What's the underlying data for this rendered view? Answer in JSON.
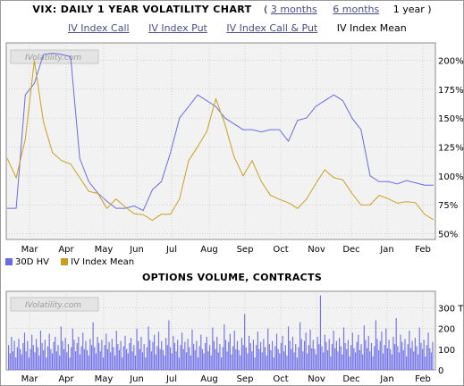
{
  "header": {
    "title": "VIX: DAILY 1 YEAR VOLATILITY CHART",
    "range_links": [
      "3 months",
      "6 months"
    ],
    "range_current": "1 year",
    "open_paren": "(",
    "close_paren": ")"
  },
  "chart_links": {
    "items": [
      "IV Index Call",
      "IV Index Put",
      "IV Index Call & Put"
    ],
    "current": "IV Index Mean"
  },
  "watermark": "IVolatility.com",
  "colors": {
    "hv": "#6b6be0",
    "iv": "#c8a020",
    "bars": "#7474ea",
    "grid": "#bdbdbd",
    "plot_bg": "#f2f2f2"
  },
  "chart_data": [
    {
      "type": "line",
      "x": [
        "Feb",
        "Feb",
        "Mar",
        "Mar",
        "Mar",
        "Mar",
        "Apr",
        "Apr",
        "Apr",
        "Apr",
        "May",
        "May",
        "May",
        "May",
        "Jun",
        "Jun",
        "Jun",
        "Jun",
        "Jul",
        "Jul",
        "Jul",
        "Jul",
        "Aug",
        "Aug",
        "Aug",
        "Aug",
        "Sep",
        "Sep",
        "Sep",
        "Sep",
        "Oct",
        "Oct",
        "Oct",
        "Oct",
        "Nov",
        "Nov",
        "Nov",
        "Nov",
        "Dec",
        "Dec",
        "Dec",
        "Dec",
        "Jan",
        "Jan",
        "Jan",
        "Jan",
        "Feb",
        "Feb"
      ],
      "x_ticks": [
        "Mar",
        "Apr",
        "May",
        "Jun",
        "Jul",
        "Aug",
        "Sep",
        "Oct",
        "Nov",
        "Dec",
        "Jan",
        "Feb"
      ],
      "y_ticks": [
        "50%",
        "75%",
        "100%",
        "125%",
        "150%",
        "175%",
        "200%"
      ],
      "ylim": [
        45,
        215
      ],
      "legend": [
        "30D HV",
        "IV Index Mean"
      ],
      "legend_position": "bottom-left",
      "grid": true,
      "series": [
        {
          "name": "30D HV",
          "values": [
            72,
            72,
            170,
            180,
            205,
            206,
            205,
            203,
            115,
            95,
            85,
            78,
            72,
            72,
            74,
            70,
            88,
            95,
            120,
            150,
            160,
            170,
            165,
            160,
            150,
            145,
            140,
            140,
            138,
            140,
            140,
            130,
            148,
            150,
            160,
            165,
            170,
            165,
            150,
            140,
            100,
            95,
            95,
            93,
            96,
            94,
            92,
            92
          ]
        },
        {
          "name": "IV Index Mean",
          "values": [
            120,
            100,
            130,
            195,
            150,
            120,
            110,
            115,
            100,
            85,
            80,
            75,
            80,
            70,
            72,
            68,
            60,
            62,
            70,
            80,
            110,
            130,
            140,
            165,
            140,
            120,
            100,
            110,
            100,
            85,
            78,
            72,
            75,
            80,
            90,
            110,
            100,
            95,
            80,
            78,
            75,
            80,
            85,
            78,
            76,
            72,
            70,
            62
          ]
        }
      ]
    },
    {
      "type": "bar",
      "title": "OPTIONS VOLUME, CONTRACTS",
      "y_ticks": [
        "0",
        "100",
        "200",
        "300 T"
      ],
      "ylim": [
        0,
        380
      ],
      "x_ticks": [
        "Mar",
        "Apr",
        "May",
        "Jun",
        "Jul",
        "Aug",
        "Sep",
        "Oct",
        "Nov",
        "Dec",
        "Jan",
        "Feb"
      ],
      "grid": true,
      "values": [
        120,
        80,
        160,
        90,
        140,
        60,
        110,
        150,
        100,
        75,
        130,
        180,
        90,
        140,
        60,
        100,
        170,
        120,
        85,
        150,
        110,
        70,
        190,
        130,
        95,
        145,
        60,
        115,
        175,
        100,
        80,
        135,
        160,
        90,
        120,
        70,
        210,
        140,
        100,
        155,
        85,
        125,
        60,
        110,
        200,
        145,
        90,
        130,
        160,
        75,
        115,
        180,
        100,
        140,
        95,
        70,
        150,
        120,
        230,
        110,
        80,
        160,
        130,
        90,
        145,
        60,
        120,
        175,
        100,
        135,
        85,
        150,
        110,
        70,
        190,
        125,
        95,
        140,
        60,
        115,
        165,
        100,
        80,
        130,
        155,
        90,
        120,
        70,
        200,
        140,
        100,
        160,
        85,
        125,
        60,
        110,
        210,
        145,
        90,
        135,
        170,
        75,
        115,
        185,
        100,
        140,
        95,
        70,
        155,
        120,
        240,
        110,
        80,
        165,
        130,
        90,
        145,
        60,
        120,
        180,
        100,
        135,
        85,
        150,
        110,
        70,
        195,
        125,
        95,
        140,
        60,
        115,
        170,
        100,
        80,
        130,
        160,
        90,
        120,
        70,
        205,
        140,
        100,
        160,
        85,
        125,
        60,
        110,
        220,
        145,
        90,
        135,
        175,
        75,
        115,
        190,
        100,
        140,
        95,
        70,
        155,
        120,
        270,
        110,
        80,
        165,
        130,
        90,
        145,
        60,
        120,
        185,
        100,
        135,
        85,
        150,
        110,
        70,
        200,
        125,
        95,
        140,
        60,
        115,
        175,
        100,
        80,
        130,
        165,
        90,
        120,
        70,
        210,
        140,
        100,
        160,
        85,
        125,
        60,
        110,
        230,
        150,
        90,
        140,
        180,
        80,
        120,
        195,
        105,
        145,
        100,
        75,
        160,
        125,
        360,
        115,
        85,
        170,
        135,
        95,
        150,
        65,
        125,
        190,
        105,
        140,
        90,
        155,
        115,
        75,
        205,
        130,
        100,
        145,
        65,
        120,
        180,
        105,
        85,
        135,
        170,
        95,
        125,
        75,
        215,
        145,
        105,
        165,
        90,
        130,
        65,
        115,
        240,
        150,
        95,
        140,
        185,
        80,
        120,
        200,
        105,
        145,
        100,
        75,
        160,
        125,
        250,
        115,
        85,
        170,
        135,
        95,
        150,
        65,
        125,
        190,
        105,
        140,
        90,
        155,
        115,
        75,
        205,
        130,
        100,
        145,
        65,
        120,
        180,
        105,
        85,
        135
      ]
    }
  ]
}
